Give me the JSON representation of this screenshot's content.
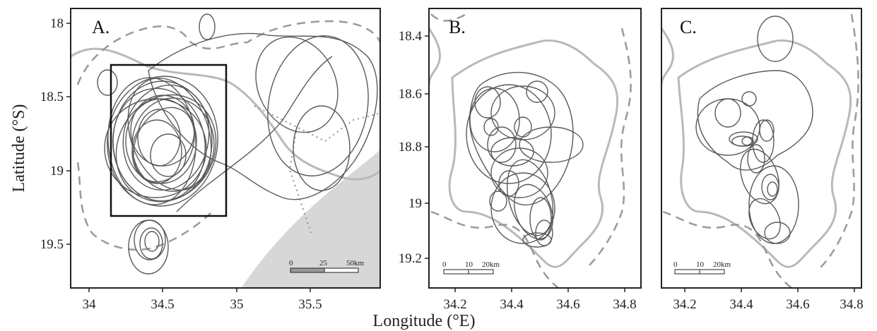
{
  "figure": {
    "x_axis_title": "Longitude (°E)",
    "y_axis_title": "Latitude (°S)"
  },
  "panels": [
    {
      "label": "A.",
      "x_ticks": [
        "34",
        "34.5",
        "35",
        "35.5"
      ],
      "y_ticks": [
        "18",
        "18.5",
        "19",
        "19.5"
      ],
      "scale_labels": [
        "0",
        "25",
        "50km"
      ]
    },
    {
      "label": "B.",
      "x_ticks": [
        "34.2",
        "34.4",
        "34.6",
        "34.8"
      ],
      "y_ticks": [
        "18.4",
        "18.6",
        "18.8",
        "19",
        "19.2"
      ],
      "scale_labels": [
        "0",
        "10",
        "20km"
      ]
    },
    {
      "label": "C.",
      "x_ticks": [
        "34.2",
        "34.4",
        "34.6",
        "34.8"
      ],
      "scale_labels": [
        "0",
        "10",
        "20km"
      ]
    }
  ],
  "colors": {
    "home_range_lines": "#5a5a5a",
    "boundary_solid": "#b9b9b9",
    "boundary_dashed": "#9a9a9a",
    "ocean": "#d7d7d7"
  }
}
